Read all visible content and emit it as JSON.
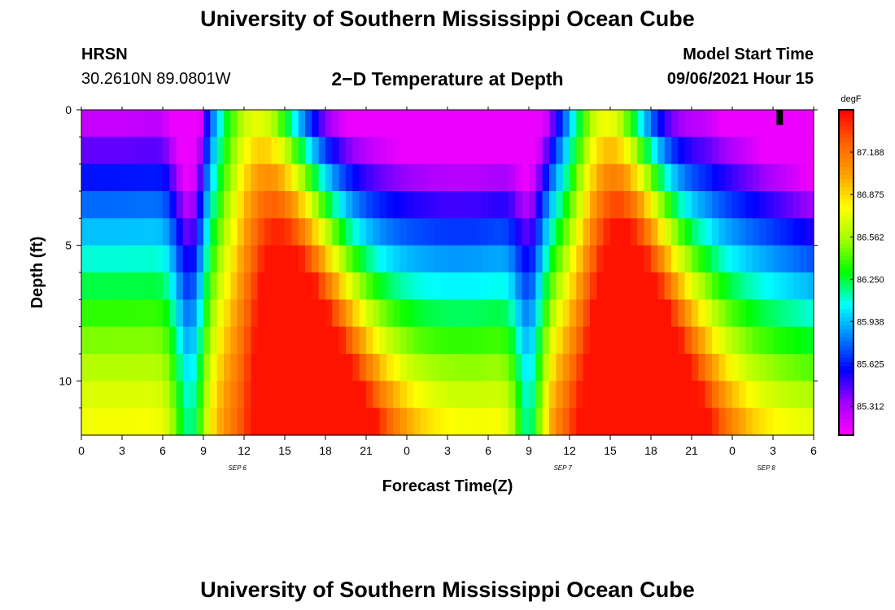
{
  "page": {
    "title_top": "University of Southern Mississippi Ocean Cube",
    "title_bottom": "University of Southern Mississippi Ocean Cube",
    "station": "HRSN",
    "coords": "30.2610N  89.0801W",
    "model_label": "Model Start Time",
    "model_time": "09/06/2021 Hour 15"
  },
  "colors": {
    "text": "#000000",
    "background": "#ffffff",
    "scale": [
      "#ff00ff",
      "#a000ff",
      "#0000ff",
      "#0080ff",
      "#00ffff",
      "#00ff00",
      "#a0ff00",
      "#ffff00",
      "#ffa000",
      "#ff6000",
      "#ff0000"
    ]
  },
  "chart_data": {
    "type": "heatmap",
    "title": "2−D Temperature at Depth",
    "xlabel": "Forecast Time(Z)",
    "ylabel": "Depth (ft)",
    "x_unit": "hours from 00Z Sep 6",
    "x_range": [
      0,
      54
    ],
    "x_ticks": [
      0,
      3,
      6,
      9,
      12,
      15,
      18,
      21,
      24,
      27,
      30,
      33,
      36,
      39,
      42,
      45,
      48,
      51,
      54
    ],
    "x_tick_labels": [
      "0",
      "3",
      "6",
      "9",
      "12",
      "15",
      "18",
      "21",
      "0",
      "3",
      "6",
      "9",
      "12",
      "15",
      "18",
      "21",
      "0",
      "3",
      "6"
    ],
    "date_labels": [
      {
        "text": "SEP 6",
        "x": 11.5
      },
      {
        "text": "SEP 7",
        "x": 35.5
      },
      {
        "text": "SEP 8",
        "x": 50.5
      }
    ],
    "y_range": [
      0,
      12
    ],
    "y_ticks": [
      0,
      5,
      10
    ],
    "y_tick_labels": [
      "0",
      "5",
      "10"
    ],
    "y_minor_ticks": [
      1,
      2,
      3,
      4,
      6,
      7,
      8,
      9,
      11
    ],
    "depth_levels": [
      0.5,
      1.5,
      2.5,
      3.5,
      4.5,
      5.5,
      6.5,
      7.5,
      8.5,
      9.5,
      10.5,
      11.5
    ],
    "colorbar": {
      "unit": "degF",
      "min": 85.1,
      "max": 87.5,
      "ticks": [
        85.312,
        85.625,
        85.938,
        86.25,
        86.562,
        86.875,
        87.188
      ],
      "tick_labels": [
        "85.312",
        "85.625",
        "85.938",
        "86.250",
        "86.562",
        "86.875",
        "87.188"
      ]
    },
    "marker": {
      "x": 51.5,
      "depth_top": 0,
      "depth_bottom": 0.5
    }
  }
}
